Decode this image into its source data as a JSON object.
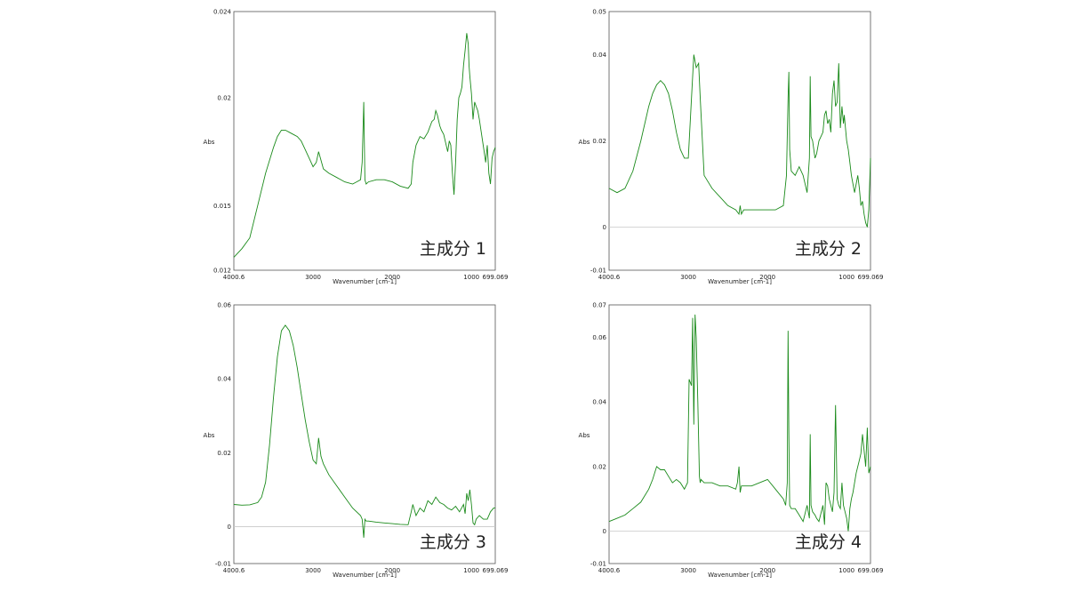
{
  "colors": {
    "trace": "#1a8a1a",
    "frame": "#555555",
    "zero_line": "#c8c8c8",
    "text": "#222222"
  },
  "chart_data": [
    {
      "type": "line",
      "title": "主成分 1",
      "xlabel": "Wavenumber [cm-1]",
      "ylabel": "Abs",
      "xlim": [
        4000.6,
        699.069
      ],
      "ylim": [
        0.012,
        0.024
      ],
      "x_ticks": [
        4000.6,
        3000,
        2000,
        1000,
        699.069
      ],
      "x_tick_labels": [
        "4000.6",
        "3000",
        "2000",
        "1000",
        "699.069"
      ],
      "y_ticks": [
        0.012,
        0.015,
        0.02,
        0.024
      ],
      "y_tick_labels": [
        "0.012",
        "0.015",
        "0.02",
        "0.024"
      ],
      "zero_line": false,
      "series": [
        {
          "x": [
            4000.6,
            3900,
            3800,
            3700,
            3600,
            3500,
            3450,
            3400,
            3350,
            3300,
            3250,
            3200,
            3150,
            3100,
            3050,
            3000,
            2960,
            2930,
            2900,
            2870,
            2800,
            2700,
            2600,
            2500,
            2450,
            2400,
            2380,
            2360,
            2345,
            2330,
            2300,
            2200,
            2100,
            2000,
            1900,
            1800,
            1760,
            1740,
            1700,
            1650,
            1600,
            1550,
            1500,
            1470,
            1450,
            1430,
            1400,
            1380,
            1350,
            1300,
            1280,
            1260,
            1240,
            1220,
            1200,
            1180,
            1160,
            1140,
            1120,
            1100,
            1080,
            1060,
            1040,
            1030,
            1020,
            1000,
            980,
            960,
            940,
            920,
            900,
            880,
            860,
            840,
            820,
            800,
            780,
            760,
            740,
            720,
            699.069
          ],
          "y": [
            0.0126,
            0.013,
            0.0135,
            0.015,
            0.0165,
            0.0177,
            0.0182,
            0.0185,
            0.0185,
            0.0184,
            0.0183,
            0.0182,
            0.018,
            0.0176,
            0.0172,
            0.0168,
            0.017,
            0.0175,
            0.0171,
            0.0167,
            0.0165,
            0.0163,
            0.0161,
            0.016,
            0.0161,
            0.0162,
            0.017,
            0.0198,
            0.0162,
            0.016,
            0.0161,
            0.0162,
            0.0162,
            0.0161,
            0.0159,
            0.0158,
            0.016,
            0.017,
            0.0178,
            0.0182,
            0.0181,
            0.0184,
            0.0189,
            0.019,
            0.0194,
            0.0192,
            0.0187,
            0.0185,
            0.0183,
            0.0175,
            0.018,
            0.0178,
            0.0165,
            0.0155,
            0.017,
            0.019,
            0.02,
            0.0202,
            0.0205,
            0.0215,
            0.0222,
            0.023,
            0.0225,
            0.0215,
            0.021,
            0.0202,
            0.019,
            0.0198,
            0.0196,
            0.0194,
            0.019,
            0.0185,
            0.018,
            0.0175,
            0.017,
            0.0178,
            0.0165,
            0.016,
            0.0172,
            0.0175,
            0.0177
          ]
        }
      ]
    },
    {
      "type": "line",
      "title": "主成分 2",
      "xlabel": "Wavenumber [cm-1]",
      "ylabel": "Abs",
      "xlim": [
        4000.6,
        699.069
      ],
      "ylim": [
        -0.01,
        0.05
      ],
      "x_ticks": [
        4000.6,
        3000,
        2000,
        1000,
        699.069
      ],
      "x_tick_labels": [
        "4000.6",
        "3000",
        "2000",
        "1000",
        "699.069"
      ],
      "y_ticks": [
        -0.01,
        0,
        0.02,
        0.04,
        0.05
      ],
      "y_tick_labels": [
        "-0.01",
        "0",
        "0.02",
        "0.04",
        "0.05"
      ],
      "zero_line": true,
      "series": [
        {
          "x": [
            4000.6,
            3900,
            3800,
            3700,
            3600,
            3500,
            3450,
            3400,
            3350,
            3300,
            3250,
            3200,
            3150,
            3100,
            3050,
            3000,
            2960,
            2930,
            2900,
            2870,
            2850,
            2800,
            2700,
            2600,
            2500,
            2400,
            2360,
            2345,
            2330,
            2300,
            2200,
            2100,
            2000,
            1900,
            1800,
            1760,
            1740,
            1730,
            1720,
            1700,
            1650,
            1600,
            1550,
            1500,
            1470,
            1460,
            1450,
            1430,
            1400,
            1380,
            1350,
            1300,
            1280,
            1260,
            1240,
            1220,
            1200,
            1180,
            1160,
            1140,
            1120,
            1100,
            1080,
            1060,
            1040,
            1030,
            1000,
            980,
            960,
            940,
            920,
            900,
            880,
            860,
            840,
            820,
            800,
            780,
            760,
            740,
            720,
            699.069
          ],
          "y": [
            0.009,
            0.008,
            0.009,
            0.013,
            0.02,
            0.028,
            0.031,
            0.033,
            0.034,
            0.033,
            0.031,
            0.027,
            0.022,
            0.018,
            0.016,
            0.016,
            0.03,
            0.04,
            0.037,
            0.038,
            0.03,
            0.012,
            0.009,
            0.007,
            0.005,
            0.004,
            0.003,
            0.005,
            0.003,
            0.004,
            0.004,
            0.004,
            0.004,
            0.004,
            0.005,
            0.012,
            0.03,
            0.036,
            0.018,
            0.013,
            0.012,
            0.014,
            0.012,
            0.008,
            0.016,
            0.035,
            0.021,
            0.02,
            0.016,
            0.017,
            0.02,
            0.022,
            0.026,
            0.027,
            0.024,
            0.025,
            0.022,
            0.031,
            0.034,
            0.028,
            0.029,
            0.038,
            0.023,
            0.028,
            0.024,
            0.026,
            0.02,
            0.018,
            0.015,
            0.012,
            0.01,
            0.008,
            0.01,
            0.012,
            0.009,
            0.005,
            0.006,
            0.003,
            0.001,
            0.0,
            0.004,
            0.016
          ]
        }
      ]
    },
    {
      "type": "line",
      "title": "主成分 3",
      "xlabel": "Wavenumber [cm-1]",
      "ylabel": "Abs",
      "xlim": [
        4000.6,
        699.069
      ],
      "ylim": [
        -0.01,
        0.06
      ],
      "x_ticks": [
        4000.6,
        3000,
        2000,
        1000,
        699.069
      ],
      "x_tick_labels": [
        "4000.6",
        "3000",
        "2000",
        "1000",
        "699.069"
      ],
      "y_ticks": [
        -0.01,
        0,
        0.02,
        0.04,
        0.06
      ],
      "y_tick_labels": [
        "-0.01",
        "0",
        "0.02",
        "0.04",
        "0.06"
      ],
      "zero_line": true,
      "series": [
        {
          "x": [
            4000.6,
            3900,
            3800,
            3700,
            3650,
            3600,
            3550,
            3500,
            3450,
            3400,
            3350,
            3300,
            3250,
            3200,
            3150,
            3100,
            3050,
            3000,
            2960,
            2930,
            2900,
            2870,
            2800,
            2700,
            2600,
            2500,
            2400,
            2380,
            2360,
            2345,
            2330,
            2300,
            2200,
            2100,
            2000,
            1900,
            1800,
            1760,
            1740,
            1700,
            1650,
            1600,
            1550,
            1500,
            1450,
            1400,
            1350,
            1300,
            1250,
            1200,
            1150,
            1100,
            1080,
            1060,
            1040,
            1020,
            1000,
            980,
            960,
            940,
            900,
            850,
            800,
            760,
            720,
            699.069
          ],
          "y": [
            0.006,
            0.0058,
            0.0059,
            0.0065,
            0.008,
            0.012,
            0.022,
            0.035,
            0.046,
            0.053,
            0.0545,
            0.053,
            0.049,
            0.043,
            0.036,
            0.029,
            0.023,
            0.018,
            0.017,
            0.024,
            0.019,
            0.017,
            0.014,
            0.011,
            0.008,
            0.005,
            0.003,
            0.002,
            -0.003,
            0.002,
            0.0015,
            0.0015,
            0.0012,
            0.001,
            0.0008,
            0.0006,
            0.0005,
            0.004,
            0.006,
            0.003,
            0.005,
            0.004,
            0.007,
            0.006,
            0.008,
            0.0065,
            0.006,
            0.005,
            0.0045,
            0.0055,
            0.004,
            0.006,
            0.0035,
            0.009,
            0.007,
            0.01,
            0.006,
            0.001,
            0.0005,
            0.002,
            0.003,
            0.002,
            0.002,
            0.004,
            0.005,
            0.005
          ]
        }
      ]
    },
    {
      "type": "line",
      "title": "主成分 4",
      "xlabel": "Wavenumber [cm-1]",
      "ylabel": "Abs",
      "xlim": [
        4000.6,
        699.069
      ],
      "ylim": [
        -0.01,
        0.07
      ],
      "x_ticks": [
        4000.6,
        3000,
        2000,
        1000,
        699.069
      ],
      "x_tick_labels": [
        "4000.6",
        "3000",
        "2000",
        "1000",
        "699.069"
      ],
      "y_ticks": [
        -0.01,
        0,
        0.02,
        0.04,
        0.06,
        0.07
      ],
      "y_tick_labels": [
        "-0.01",
        "0",
        "0.02",
        "0.04",
        "0.06",
        "0.07"
      ],
      "zero_line": true,
      "series": [
        {
          "x": [
            4000.6,
            3900,
            3800,
            3700,
            3600,
            3500,
            3450,
            3400,
            3350,
            3300,
            3250,
            3200,
            3150,
            3100,
            3050,
            3010,
            2990,
            2960,
            2945,
            2930,
            2915,
            2900,
            2880,
            2860,
            2850,
            2840,
            2800,
            2700,
            2600,
            2500,
            2400,
            2380,
            2360,
            2345,
            2330,
            2300,
            2200,
            2100,
            2000,
            1900,
            1800,
            1770,
            1750,
            1740,
            1730,
            1720,
            1700,
            1650,
            1600,
            1550,
            1500,
            1470,
            1460,
            1450,
            1430,
            1400,
            1380,
            1350,
            1300,
            1280,
            1260,
            1240,
            1220,
            1200,
            1180,
            1160,
            1140,
            1120,
            1100,
            1080,
            1060,
            1040,
            1020,
            1000,
            980,
            960,
            940,
            920,
            900,
            880,
            860,
            840,
            820,
            800,
            780,
            760,
            740,
            720,
            699.069
          ],
          "y": [
            0.003,
            0.004,
            0.005,
            0.007,
            0.009,
            0.013,
            0.016,
            0.02,
            0.019,
            0.019,
            0.017,
            0.015,
            0.016,
            0.015,
            0.013,
            0.015,
            0.047,
            0.045,
            0.066,
            0.033,
            0.067,
            0.06,
            0.04,
            0.017,
            0.015,
            0.016,
            0.015,
            0.015,
            0.014,
            0.014,
            0.013,
            0.015,
            0.02,
            0.012,
            0.014,
            0.014,
            0.014,
            0.015,
            0.016,
            0.013,
            0.01,
            0.008,
            0.015,
            0.062,
            0.03,
            0.008,
            0.007,
            0.007,
            0.005,
            0.003,
            0.008,
            0.004,
            0.03,
            0.008,
            0.006,
            0.005,
            0.004,
            0.003,
            0.008,
            0.002,
            0.015,
            0.014,
            0.01,
            0.008,
            0.006,
            0.012,
            0.039,
            0.01,
            0.008,
            0.007,
            0.015,
            0.008,
            0.006,
            0.004,
            0.0,
            0.007,
            0.01,
            0.012,
            0.015,
            0.018,
            0.02,
            0.022,
            0.024,
            0.03,
            0.025,
            0.02,
            0.032,
            0.018,
            0.02
          ]
        }
      ]
    }
  ]
}
